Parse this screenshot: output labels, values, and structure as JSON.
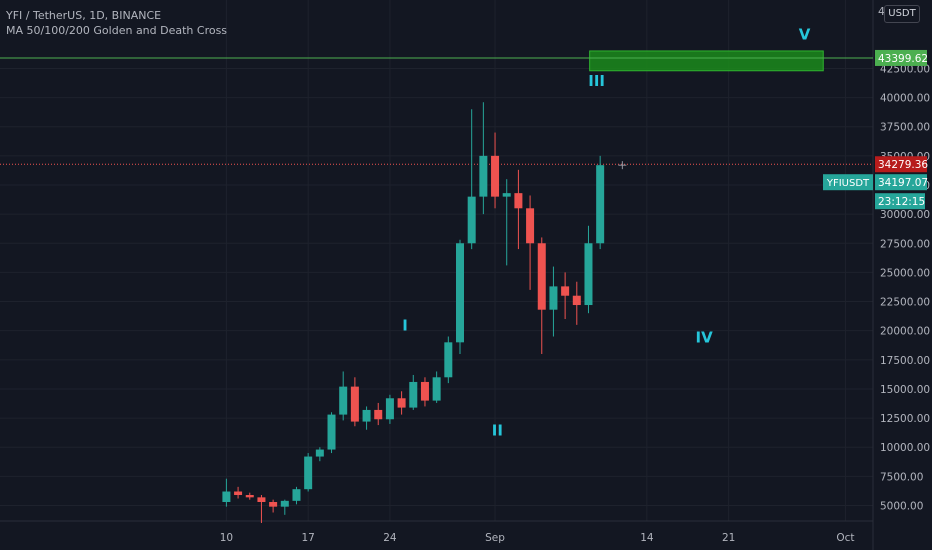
{
  "legend": {
    "title": "YFI / TetherUS, 1D, BINANCE",
    "indicator": "MA 50/100/200 Golden and Death Cross"
  },
  "currency_button": "USDT",
  "top_tick_fragment": "4",
  "colors": {
    "background": "#131722",
    "grid": "#1e222d",
    "up": "#26a69a",
    "down": "#ef5350",
    "wave_label": "#26c6da",
    "resistance_line": "#4caf50",
    "target_zone": "#1b8a1b",
    "current_price": "#b71c1c",
    "last_price": "#26a69a"
  },
  "chart_data": {
    "type": "candlestick",
    "ylim": [
      3000,
      45500
    ],
    "y_ticks": [
      "5000.00",
      "7500.00",
      "10000.00",
      "12500.00",
      "15000.00",
      "17500.00",
      "20000.00",
      "22500.00",
      "25000.00",
      "27500.00",
      "30000.00",
      "32500.00",
      "35000.00",
      "37500.00",
      "40000.00",
      "42500.00"
    ],
    "x_ticks": [
      {
        "label": "10",
        "index": 0
      },
      {
        "label": "17",
        "index": 7
      },
      {
        "label": "24",
        "index": 14
      },
      {
        "label": "Sep",
        "index": 23
      },
      {
        "label": "14",
        "index": 36
      },
      {
        "label": "21",
        "index": 43
      },
      {
        "label": "Oct",
        "index": 53
      }
    ],
    "candles": [
      {
        "o": 5300,
        "h": 7300,
        "l": 4900,
        "c": 6200
      },
      {
        "o": 6200,
        "h": 6600,
        "l": 5600,
        "c": 5900
      },
      {
        "o": 5900,
        "h": 6100,
        "l": 5500,
        "c": 5700
      },
      {
        "o": 5700,
        "h": 5900,
        "l": 3500,
        "c": 5300
      },
      {
        "o": 5300,
        "h": 5500,
        "l": 4400,
        "c": 4900
      },
      {
        "o": 4900,
        "h": 5500,
        "l": 4200,
        "c": 5400
      },
      {
        "o": 5400,
        "h": 6600,
        "l": 5100,
        "c": 6400
      },
      {
        "o": 6400,
        "h": 9500,
        "l": 6200,
        "c": 9200
      },
      {
        "o": 9200,
        "h": 10000,
        "l": 8800,
        "c": 9800
      },
      {
        "o": 9800,
        "h": 13000,
        "l": 9500,
        "c": 12800
      },
      {
        "o": 12800,
        "h": 16500,
        "l": 12300,
        "c": 15200
      },
      {
        "o": 15200,
        "h": 16000,
        "l": 11800,
        "c": 12200
      },
      {
        "o": 12200,
        "h": 13500,
        "l": 11500,
        "c": 13200
      },
      {
        "o": 13200,
        "h": 13800,
        "l": 11900,
        "c": 12400
      },
      {
        "o": 12400,
        "h": 14500,
        "l": 12000,
        "c": 14200
      },
      {
        "o": 14200,
        "h": 14800,
        "l": 12800,
        "c": 13400
      },
      {
        "o": 13400,
        "h": 16200,
        "l": 13200,
        "c": 15600
      },
      {
        "o": 15600,
        "h": 16000,
        "l": 13500,
        "c": 14000
      },
      {
        "o": 14000,
        "h": 16500,
        "l": 13800,
        "c": 16000
      },
      {
        "o": 16000,
        "h": 19500,
        "l": 15500,
        "c": 19000
      },
      {
        "o": 19000,
        "h": 27800,
        "l": 18000,
        "c": 27500
      },
      {
        "o": 27500,
        "h": 39000,
        "l": 27000,
        "c": 31500
      },
      {
        "o": 31500,
        "h": 39600,
        "l": 30000,
        "c": 35000
      },
      {
        "o": 35000,
        "h": 37000,
        "l": 30500,
        "c": 31500
      },
      {
        "o": 31500,
        "h": 33000,
        "l": 25600,
        "c": 31800
      },
      {
        "o": 31800,
        "h": 33800,
        "l": 27000,
        "c": 30500
      },
      {
        "o": 30500,
        "h": 31600,
        "l": 23500,
        "c": 27500
      },
      {
        "o": 27500,
        "h": 28000,
        "l": 18000,
        "c": 21800
      },
      {
        "o": 21800,
        "h": 25500,
        "l": 19500,
        "c": 23800
      },
      {
        "o": 23800,
        "h": 25000,
        "l": 21000,
        "c": 23000
      },
      {
        "o": 23000,
        "h": 24200,
        "l": 20500,
        "c": 22200
      },
      {
        "o": 22200,
        "h": 29000,
        "l": 21500,
        "c": 27500
      },
      {
        "o": 27500,
        "h": 35000,
        "l": 27000,
        "c": 34200
      }
    ],
    "annotations": [
      {
        "label": "I",
        "index": 15.3,
        "price": 20000
      },
      {
        "label": "II",
        "index": 23.2,
        "price": 11000
      },
      {
        "label": "III",
        "index": 31.7,
        "price": 41000
      },
      {
        "label": "IV",
        "index": 40.9,
        "price": 19000
      },
      {
        "label": "V",
        "index": 49.5,
        "price": 45000
      }
    ],
    "target_zone": {
      "start_index": 31.1,
      "end_index": 51.1,
      "low": 42300,
      "high": 44000
    },
    "resistance_line": {
      "price": 43399.62,
      "label": "43399.62"
    },
    "current_price": {
      "price": 34279.36,
      "label": "34279.36"
    },
    "last_price": {
      "price": 34197.07,
      "label": "34197.07",
      "symbol": "YFIUSDT",
      "countdown": "23:12:15"
    },
    "crosshair": {
      "index": 33.9,
      "price": 34200
    }
  }
}
